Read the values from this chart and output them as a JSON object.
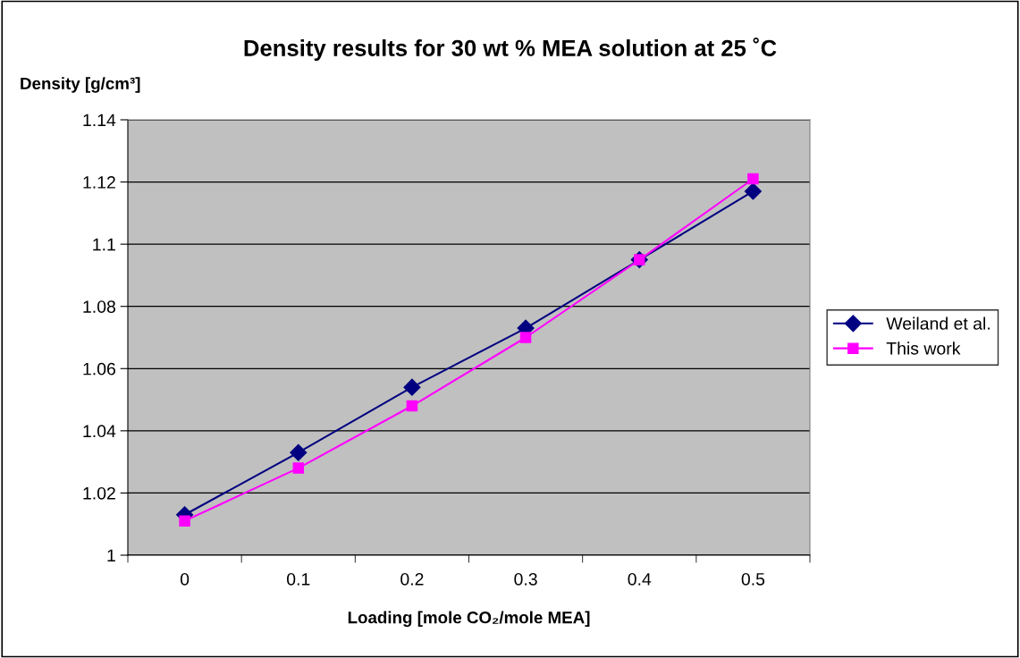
{
  "chart_data": {
    "type": "line",
    "title": "Density results for 30 wt % MEA solution at 25 ˚C",
    "xlabel": "Loading [mole CO₂/mole MEA]",
    "ylabel": "Density [g/cm³]",
    "categories": [
      "0",
      "0.1",
      "0.2",
      "0.3",
      "0.4",
      "0.5"
    ],
    "series": [
      {
        "name": "Weiland et al.",
        "color": "#000080",
        "marker": "diamond",
        "values": [
          1.013,
          1.033,
          1.054,
          1.073,
          1.095,
          1.117
        ]
      },
      {
        "name": "This work",
        "color": "#ff00ff",
        "marker": "square",
        "values": [
          1.011,
          1.028,
          1.048,
          1.07,
          1.095,
          1.121
        ]
      }
    ],
    "ylim": [
      1,
      1.14
    ],
    "yticks": [
      {
        "value": 1,
        "label": "1"
      },
      {
        "value": 1.02,
        "label": "1.02"
      },
      {
        "value": 1.04,
        "label": "1.04"
      },
      {
        "value": 1.06,
        "label": "1.06"
      },
      {
        "value": 1.08,
        "label": "1.08"
      },
      {
        "value": 1.1,
        "label": "1.1"
      },
      {
        "value": 1.12,
        "label": "1.12"
      },
      {
        "value": 1.14,
        "label": "1.14"
      }
    ],
    "grid": "y",
    "legend": "right",
    "line_style": "solid"
  }
}
